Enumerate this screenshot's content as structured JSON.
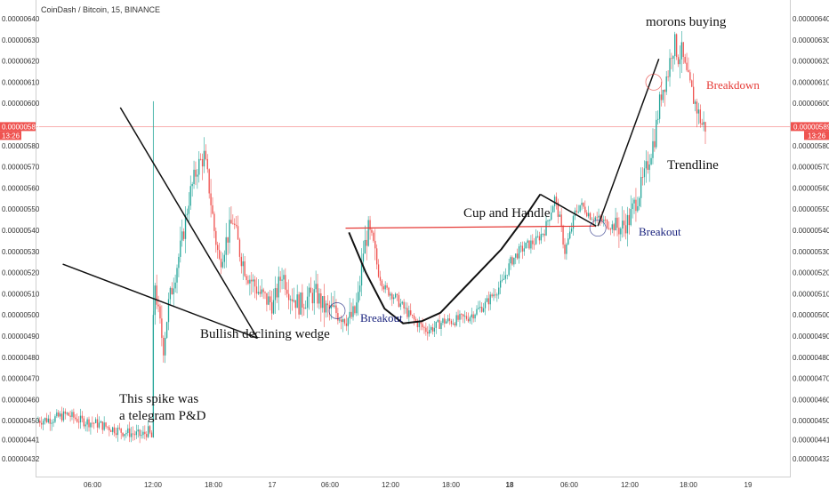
{
  "chart_data": {
    "type": "candlestick",
    "title": "CoinDash / Bitcoin, 15, BINANCE",
    "ylim": [
      4.28e-06,
      6.45e-06
    ],
    "y_ticks": [
      "0.00000640",
      "0.00000630",
      "0.00000620",
      "0.00000610",
      "0.00000600",
      "0.00000589",
      "0.00000580",
      "0.00000570",
      "0.00000560",
      "0.00000550",
      "0.00000540",
      "0.00000530",
      "0.00000520",
      "0.00000510",
      "0.00000500",
      "0.00000490",
      "0.00000480",
      "0.00000470",
      "0.00000460",
      "0.00000450",
      "0.00000441",
      "0.00000432"
    ],
    "x_ticks": [
      {
        "label": "06:00",
        "bold": false
      },
      {
        "label": "12:00",
        "bold": false
      },
      {
        "label": "18:00",
        "bold": false
      },
      {
        "label": "17",
        "bold": false
      },
      {
        "label": "06:00",
        "bold": false
      },
      {
        "label": "12:00",
        "bold": false
      },
      {
        "label": "18:00",
        "bold": false
      },
      {
        "label": "18",
        "bold": true
      },
      {
        "label": "06:00",
        "bold": false
      },
      {
        "label": "12:00",
        "bold": false
      },
      {
        "label": "18:00",
        "bold": false
      },
      {
        "label": "19",
        "bold": false
      }
    ],
    "last_price": {
      "value": "0.00000589",
      "time": "13:26"
    },
    "price_path": [
      [
        0,
        4.5
      ],
      [
        10,
        4.51
      ],
      [
        18,
        4.53
      ],
      [
        26,
        4.5
      ],
      [
        34,
        4.49
      ],
      [
        42,
        4.47
      ],
      [
        50,
        4.45
      ],
      [
        56,
        4.44
      ],
      [
        62,
        4.43
      ],
      [
        66,
        4.45
      ],
      [
        68,
        4.42
      ],
      [
        69,
        4.82
      ],
      [
        70,
        5.15
      ],
      [
        72,
        5.0
      ],
      [
        75,
        4.85
      ],
      [
        78,
        5.05
      ],
      [
        82,
        5.2
      ],
      [
        86,
        5.35
      ],
      [
        90,
        5.55
      ],
      [
        95,
        5.7
      ],
      [
        99,
        5.75
      ],
      [
        102,
        5.6
      ],
      [
        105,
        5.4
      ],
      [
        108,
        5.25
      ],
      [
        112,
        5.35
      ],
      [
        116,
        5.45
      ],
      [
        120,
        5.3
      ],
      [
        124,
        5.2
      ],
      [
        128,
        5.15
      ],
      [
        132,
        5.1
      ],
      [
        136,
        5.07
      ],
      [
        140,
        5.05
      ],
      [
        145,
        5.2
      ],
      [
        150,
        5.1
      ],
      [
        155,
        5.05
      ],
      [
        160,
        5.08
      ],
      [
        165,
        5.1
      ],
      [
        170,
        5.03
      ],
      [
        175,
        5.02
      ],
      [
        180,
        5.0
      ],
      [
        185,
        4.98
      ],
      [
        188,
        5.01
      ],
      [
        190,
        5.08
      ],
      [
        193,
        5.3
      ],
      [
        196,
        5.4
      ],
      [
        199,
        5.32
      ],
      [
        202,
        5.2
      ],
      [
        206,
        5.12
      ],
      [
        210,
        5.1
      ],
      [
        215,
        5.05
      ],
      [
        220,
        5.0
      ],
      [
        225,
        4.96
      ],
      [
        230,
        4.93
      ],
      [
        235,
        4.94
      ],
      [
        240,
        4.97
      ],
      [
        245,
        4.97
      ],
      [
        250,
        4.98
      ],
      [
        255,
        4.99
      ],
      [
        260,
        5.02
      ],
      [
        265,
        5.05
      ],
      [
        270,
        5.1
      ],
      [
        275,
        5.15
      ],
      [
        280,
        5.25
      ],
      [
        285,
        5.3
      ],
      [
        290,
        5.33
      ],
      [
        295,
        5.35
      ],
      [
        300,
        5.4
      ],
      [
        303,
        5.47
      ],
      [
        306,
        5.55
      ],
      [
        309,
        5.45
      ],
      [
        312,
        5.3
      ],
      [
        315,
        5.38
      ],
      [
        318,
        5.48
      ],
      [
        321,
        5.52
      ],
      [
        324,
        5.5
      ],
      [
        327,
        5.47
      ],
      [
        330,
        5.46
      ],
      [
        335,
        5.44
      ],
      [
        340,
        5.42
      ],
      [
        345,
        5.41
      ],
      [
        350,
        5.45
      ],
      [
        353,
        5.52
      ],
      [
        356,
        5.58
      ],
      [
        359,
        5.65
      ],
      [
        362,
        5.75
      ],
      [
        365,
        5.84
      ],
      [
        367,
        5.95
      ],
      [
        369,
        6.05
      ],
      [
        371,
        6.1
      ],
      [
        373,
        6.15
      ],
      [
        375,
        6.25
      ],
      [
        377,
        6.28
      ],
      [
        379,
        6.22
      ],
      [
        381,
        6.24
      ],
      [
        383,
        6.16
      ],
      [
        385,
        6.1
      ],
      [
        387,
        6.05
      ],
      [
        389,
        6.0
      ],
      [
        391,
        5.95
      ],
      [
        393,
        5.9
      ],
      [
        395,
        5.89
      ]
    ],
    "n_candles": 395,
    "overlays": {
      "lines": [
        {
          "name": "wedge-upper-line",
          "color": "#111111",
          "points": [
            [
              49,
              5.98e-06
            ],
            [
              130,
              4.89e-06
            ]
          ]
        },
        {
          "name": "wedge-lower-line",
          "color": "#111111",
          "points": [
            [
              15,
              5.24e-06
            ],
            [
              130,
              4.89e-06
            ]
          ]
        },
        {
          "name": "resistance-line",
          "color": "#e53935",
          "points": [
            [
              182,
              5.41e-06
            ],
            [
              330,
              5.42e-06
            ]
          ]
        },
        {
          "name": "handle-line",
          "color": "#111111",
          "points": [
            [
              297,
              5.57e-06
            ],
            [
              330,
              5.42e-06
            ]
          ]
        },
        {
          "name": "trendline",
          "color": "#111111",
          "points": [
            [
              331,
              5.42e-06
            ],
            [
              367,
              6.21e-06
            ]
          ]
        }
      ],
      "curves": [
        {
          "name": "cup-curve",
          "color": "#111111",
          "points": [
            [
              184,
              5.39e-06
            ],
            [
              194,
              5.2e-06
            ],
            [
              205,
              5.03e-06
            ],
            [
              216,
              4.96e-06
            ],
            [
              227,
              4.97e-06
            ],
            [
              238,
              5.01e-06
            ],
            [
              250,
              5.11e-06
            ],
            [
              262,
              5.21e-06
            ],
            [
              274,
              5.31e-06
            ],
            [
              286,
              5.44e-06
            ],
            [
              297,
              5.57e-06
            ]
          ]
        }
      ],
      "circles": [
        {
          "name": "wedge-breakout-circle",
          "color": "#1a237e",
          "center": [
            177,
            5.02e-06
          ]
        },
        {
          "name": "cup-breakout-circle",
          "color": "#1a237e",
          "center": [
            331,
            5.41e-06
          ]
        },
        {
          "name": "breakdown-circle",
          "color": "#e53935",
          "center": [
            364,
            6.1e-06
          ]
        }
      ]
    },
    "annotations": {
      "spike_line1": "This spike was",
      "spike_line2": "a telegram P&D",
      "wedge": "Bullish declining wedge",
      "breakout1": "Breakout",
      "cup": "Cup and Handle",
      "breakout2": "Breakout",
      "trendline": "Trendline",
      "breakdown": "Breakdown",
      "morons": "morons buying"
    },
    "colors": {
      "up": "#26a69a",
      "down": "#ef5350",
      "price_line": "#ef5350",
      "breakout_text": "#1a237e",
      "breakdown_text": "#e53935",
      "axis_text": "#333333",
      "pattern_line": "#111111"
    }
  }
}
